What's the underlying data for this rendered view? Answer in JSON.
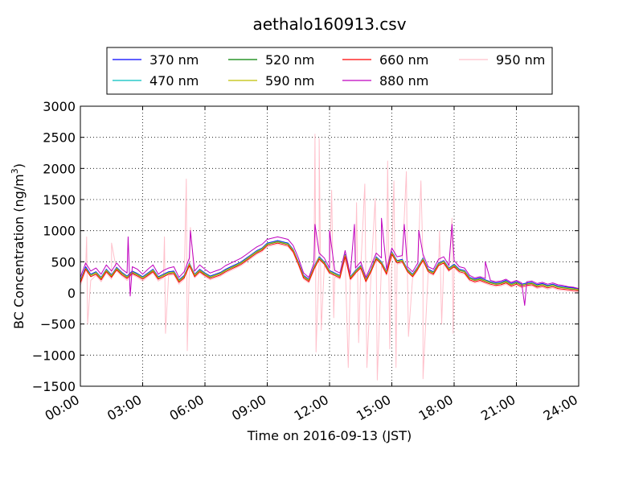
{
  "chart_data": {
    "type": "line",
    "title": "aethalo160913.csv",
    "xlabel": "Time on 2016-09-13 (JST)",
    "ylabel": "BC Concentration (ng/m³)",
    "ylabel_main": "BC Concentration (ng/m",
    "ylabel_sup": "3",
    "ylabel_end": ")",
    "xlim": [
      0,
      24
    ],
    "ylim": [
      -1500,
      3000
    ],
    "xtick_values": [
      0,
      3,
      6,
      9,
      12,
      15,
      18,
      21,
      24
    ],
    "xtick_labels": [
      "00:00",
      "03:00",
      "06:00",
      "09:00",
      "12:00",
      "15:00",
      "18:00",
      "21:00",
      "24:00"
    ],
    "ytick_values": [
      -1500,
      -1000,
      -500,
      0,
      500,
      1000,
      1500,
      2000,
      2500,
      3000
    ],
    "ytick_labels": [
      "−1500",
      "−1000",
      "−500",
      "0",
      "500",
      "1000",
      "1500",
      "2000",
      "2500",
      "3000"
    ],
    "grid": true,
    "legend_position": "top-center",
    "legend_columns": 4,
    "x_hours": [
      0.0,
      0.25,
      0.5,
      0.75,
      1.0,
      1.25,
      1.5,
      1.75,
      2.0,
      2.25,
      2.5,
      2.75,
      3.0,
      3.25,
      3.5,
      3.75,
      4.0,
      4.25,
      4.5,
      4.75,
      5.0,
      5.25,
      5.5,
      5.75,
      6.0,
      6.25,
      6.5,
      6.75,
      7.0,
      7.25,
      7.5,
      7.75,
      8.0,
      8.25,
      8.5,
      8.75,
      9.0,
      9.25,
      9.5,
      9.75,
      10.0,
      10.25,
      10.5,
      10.75,
      11.0,
      11.25,
      11.5,
      11.75,
      12.0,
      12.25,
      12.5,
      12.75,
      13.0,
      13.25,
      13.5,
      13.75,
      14.0,
      14.25,
      14.5,
      14.75,
      15.0,
      15.25,
      15.5,
      15.75,
      16.0,
      16.25,
      16.5,
      16.75,
      17.0,
      17.25,
      17.5,
      17.75,
      18.0,
      18.25,
      18.5,
      18.75,
      19.0,
      19.25,
      19.5,
      19.75,
      20.0,
      20.25,
      20.5,
      20.75,
      21.0,
      21.25,
      21.5,
      21.75,
      22.0,
      22.25,
      22.5,
      22.75,
      23.0,
      23.25,
      23.5,
      23.75,
      24.0
    ],
    "series": [
      {
        "name": "370 nm",
        "color": "#0000ff",
        "values": [
          200,
          420,
          300,
          340,
          250,
          380,
          290,
          410,
          330,
          270,
          350,
          310,
          260,
          320,
          380,
          260,
          300,
          340,
          350,
          210,
          280,
          480,
          300,
          380,
          320,
          270,
          300,
          330,
          380,
          420,
          460,
          500,
          560,
          620,
          680,
          720,
          800,
          820,
          840,
          820,
          800,
          700,
          500,
          280,
          220,
          420,
          580,
          500,
          360,
          320,
          280,
          620,
          260,
          360,
          440,
          220,
          380,
          580,
          500,
          340,
          660,
          520,
          540,
          380,
          300,
          420,
          560,
          380,
          340,
          480,
          520,
          400,
          460,
          380,
          360,
          250,
          220,
          240,
          210,
          180,
          160,
          170,
          200,
          150,
          180,
          140,
          160,
          170,
          130,
          150,
          120,
          140,
          110,
          100,
          90,
          80,
          60
        ]
      },
      {
        "name": "470 nm",
        "color": "#00bfbf",
        "values": [
          190,
          400,
          290,
          330,
          240,
          370,
          280,
          400,
          320,
          260,
          340,
          300,
          250,
          310,
          370,
          250,
          290,
          330,
          340,
          200,
          270,
          470,
          290,
          370,
          310,
          260,
          290,
          320,
          370,
          410,
          450,
          490,
          550,
          610,
          670,
          710,
          790,
          810,
          830,
          810,
          790,
          690,
          490,
          270,
          210,
          410,
          570,
          490,
          350,
          310,
          270,
          610,
          250,
          350,
          430,
          210,
          370,
          570,
          490,
          330,
          650,
          510,
          530,
          370,
          290,
          410,
          550,
          370,
          330,
          470,
          510,
          390,
          450,
          370,
          350,
          240,
          210,
          230,
          200,
          170,
          150,
          160,
          190,
          140,
          170,
          130,
          150,
          160,
          120,
          140,
          110,
          130,
          100,
          90,
          80,
          70,
          55
        ]
      },
      {
        "name": "520 nm",
        "color": "#008000",
        "values": [
          180,
          390,
          280,
          320,
          230,
          360,
          270,
          390,
          310,
          250,
          330,
          290,
          240,
          300,
          360,
          240,
          280,
          320,
          330,
          190,
          260,
          460,
          280,
          360,
          300,
          250,
          280,
          310,
          360,
          400,
          440,
          480,
          540,
          600,
          660,
          700,
          780,
          800,
          820,
          800,
          780,
          680,
          480,
          260,
          200,
          400,
          560,
          480,
          340,
          300,
          260,
          600,
          240,
          340,
          420,
          200,
          360,
          560,
          480,
          320,
          640,
          500,
          520,
          360,
          280,
          400,
          540,
          360,
          320,
          460,
          500,
          380,
          440,
          360,
          340,
          230,
          200,
          220,
          190,
          160,
          140,
          150,
          180,
          130,
          160,
          120,
          140,
          150,
          110,
          130,
          100,
          120,
          90,
          80,
          70,
          60,
          50
        ]
      },
      {
        "name": "590 nm",
        "color": "#bfbf00",
        "values": [
          185,
          395,
          285,
          325,
          235,
          365,
          275,
          395,
          315,
          255,
          335,
          295,
          245,
          305,
          365,
          245,
          285,
          325,
          335,
          195,
          265,
          465,
          285,
          365,
          305,
          255,
          285,
          315,
          365,
          405,
          445,
          485,
          545,
          605,
          665,
          705,
          785,
          805,
          825,
          805,
          785,
          685,
          485,
          265,
          205,
          405,
          565,
          485,
          345,
          305,
          265,
          605,
          245,
          345,
          425,
          205,
          365,
          565,
          485,
          325,
          645,
          505,
          525,
          365,
          285,
          405,
          545,
          365,
          325,
          465,
          505,
          385,
          445,
          365,
          345,
          235,
          205,
          225,
          195,
          165,
          145,
          155,
          185,
          135,
          165,
          125,
          145,
          155,
          115,
          135,
          105,
          125,
          95,
          85,
          75,
          65,
          52
        ]
      },
      {
        "name": "660 nm",
        "color": "#ff0000",
        "values": [
          160,
          380,
          260,
          300,
          210,
          340,
          250,
          370,
          290,
          230,
          310,
          270,
          220,
          280,
          340,
          220,
          260,
          300,
          310,
          170,
          240,
          440,
          260,
          340,
          280,
          230,
          260,
          290,
          340,
          380,
          420,
          460,
          520,
          580,
          640,
          680,
          760,
          780,
          800,
          780,
          760,
          660,
          460,
          240,
          180,
          380,
          540,
          460,
          320,
          280,
          240,
          580,
          220,
          320,
          400,
          180,
          340,
          540,
          460,
          300,
          620,
          480,
          500,
          340,
          260,
          380,
          520,
          340,
          300,
          440,
          480,
          360,
          420,
          340,
          320,
          210,
          180,
          200,
          170,
          140,
          120,
          130,
          160,
          110,
          140,
          100,
          120,
          130,
          90,
          110,
          80,
          100,
          70,
          60,
          50,
          40,
          35
        ]
      },
      {
        "name": "880 nm",
        "color": "#bf00bf",
        "values": [
          250,
          480,
          350,
          400,
          300,
          450,
          350,
          480,
          380,
          320,
          420,
          380,
          300,
          380,
          450,
          300,
          360,
          400,
          420,
          250,
          340,
          560,
          350,
          450,
          380,
          320,
          350,
          380,
          440,
          480,
          520,
          560,
          620,
          680,
          740,
          780,
          860,
          880,
          900,
          880,
          860,
          760,
          560,
          320,
          250,
          480,
          640,
          560,
          400,
          360,
          320,
          680,
          300,
          400,
          500,
          250,
          440,
          640,
          560,
          380,
          720,
          580,
          600,
          420,
          340,
          480,
          620,
          420,
          380,
          540,
          580,
          440,
          520,
          420,
          400,
          280,
          240,
          260,
          230,
          200,
          180,
          190,
          220,
          170,
          200,
          160,
          180,
          190,
          150,
          170,
          140,
          160,
          130,
          120,
          100,
          90,
          70
        ]
      },
      {
        "name": "950 nm",
        "color": "#ffc0cb",
        "values": [
          120,
          350,
          200,
          280,
          180,
          320,
          220,
          350,
          270,
          200,
          290,
          250,
          190,
          260,
          320,
          190,
          240,
          280,
          290,
          140,
          220,
          420,
          240,
          320,
          260,
          210,
          240,
          270,
          320,
          360,
          400,
          440,
          500,
          560,
          620,
          660,
          740,
          760,
          780,
          760,
          740,
          640,
          440,
          220,
          160,
          360,
          520,
          440,
          300,
          260,
          220,
          560,
          200,
          300,
          380,
          160,
          320,
          520,
          440,
          280,
          600,
          460,
          480,
          320,
          240,
          360,
          500,
          320,
          280,
          420,
          460,
          340,
          400,
          320,
          300,
          190,
          160,
          180,
          150,
          120,
          100,
          110,
          140,
          90,
          120,
          80,
          100,
          110,
          70,
          90,
          60,
          80,
          50,
          40,
          30,
          20,
          15
        ]
      }
    ],
    "spikes": [
      {
        "series": "950 nm",
        "points": [
          [
            0.3,
            900
          ],
          [
            0.35,
            -500
          ],
          [
            1.5,
            800
          ],
          [
            4.05,
            900
          ],
          [
            4.1,
            -650
          ],
          [
            5.1,
            1830
          ],
          [
            5.15,
            -930
          ],
          [
            5.3,
            1050
          ],
          [
            11.3,
            2550
          ],
          [
            11.35,
            -950
          ],
          [
            11.5,
            2480
          ],
          [
            11.6,
            -600
          ],
          [
            12.1,
            1650
          ],
          [
            12.2,
            -400
          ],
          [
            12.9,
            -1200
          ],
          [
            13.3,
            1450
          ],
          [
            13.4,
            -800
          ],
          [
            13.7,
            1750
          ],
          [
            13.8,
            -1200
          ],
          [
            14.2,
            1520
          ],
          [
            14.3,
            -1400
          ],
          [
            14.8,
            2120
          ],
          [
            14.9,
            -900
          ],
          [
            15.1,
            1800
          ],
          [
            15.2,
            -1200
          ],
          [
            15.7,
            1950
          ],
          [
            15.8,
            -700
          ],
          [
            16.4,
            1800
          ],
          [
            16.5,
            -1380
          ],
          [
            17.3,
            1000
          ],
          [
            17.4,
            -500
          ],
          [
            17.9,
            1200
          ],
          [
            17.95,
            -650
          ]
        ]
      },
      {
        "series": "880 nm",
        "points": [
          [
            2.3,
            900
          ],
          [
            2.4,
            -50
          ],
          [
            5.3,
            1000
          ],
          [
            11.3,
            1100
          ],
          [
            12.0,
            1000
          ],
          [
            13.2,
            1100
          ],
          [
            14.5,
            1200
          ],
          [
            15.6,
            1100
          ],
          [
            16.3,
            1000
          ],
          [
            17.9,
            1100
          ],
          [
            19.5,
            500
          ],
          [
            21.4,
            -200
          ],
          [
            23.5,
            100
          ]
        ]
      }
    ]
  }
}
